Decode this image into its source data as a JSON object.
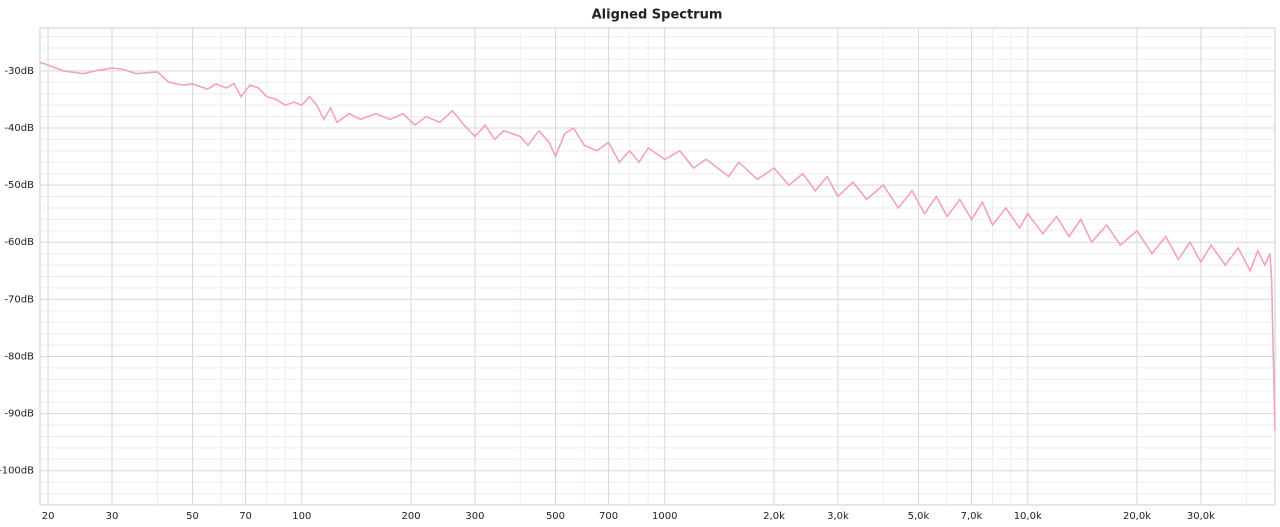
{
  "chart_data": {
    "type": "line",
    "title": "Aligned Spectrum",
    "log_x": true,
    "grid": true,
    "xlim": [
      19,
      48000
    ],
    "ylim": [
      -106,
      -22.5
    ],
    "xticks": [
      20,
      30,
      50,
      70,
      100,
      200,
      300,
      500,
      700,
      1000,
      {
        "value": 2000,
        "label": "2,0k"
      },
      {
        "value": 3000,
        "label": "3,0k"
      },
      {
        "value": 5000,
        "label": "5,0k"
      },
      {
        "value": 7000,
        "label": "7,0k"
      },
      {
        "value": 10000,
        "label": "10,0k"
      },
      {
        "value": 20000,
        "label": "20,0k"
      },
      {
        "value": 30000,
        "label": "30,0k"
      }
    ],
    "minor_xticks": [
      40,
      60,
      80,
      90,
      400,
      600,
      800,
      900,
      4000,
      6000,
      8000,
      9000,
      40000
    ],
    "yticks": [
      {
        "value": -30,
        "label": "-30dB"
      },
      {
        "value": -40,
        "label": "-40dB"
      },
      {
        "value": -50,
        "label": "-50dB"
      },
      {
        "value": -60,
        "label": "-60dB"
      },
      {
        "value": -70,
        "label": "-70dB"
      },
      {
        "value": -80,
        "label": "-80dB"
      },
      {
        "value": -90,
        "label": "-90dB"
      },
      {
        "value": -100,
        "label": "-100dB"
      }
    ],
    "minor_yticks": [
      -24,
      -26,
      -28,
      -32,
      -34,
      -36,
      -38,
      -42,
      -44,
      -46,
      -48,
      -52,
      -54,
      -56,
      -58,
      -62,
      -64,
      -66,
      -68,
      -72,
      -74,
      -76,
      -78,
      -82,
      -84,
      -86,
      -88,
      -92,
      -94,
      -96,
      -98,
      -102,
      -104
    ],
    "x": [
      19,
      20,
      22,
      25,
      27,
      30,
      32,
      35,
      40,
      43,
      47,
      50,
      55,
      58,
      62,
      65,
      68,
      72,
      76,
      80,
      85,
      90,
      95,
      100,
      105,
      110,
      115,
      120,
      125,
      135,
      145,
      160,
      175,
      190,
      205,
      220,
      240,
      260,
      280,
      300,
      320,
      340,
      360,
      400,
      420,
      450,
      480,
      500,
      530,
      560,
      600,
      650,
      700,
      750,
      800,
      850,
      900,
      1000,
      1100,
      1200,
      1300,
      1500,
      1600,
      1800,
      2000,
      2200,
      2400,
      2600,
      2800,
      3000,
      3300,
      3600,
      4000,
      4400,
      4800,
      5200,
      5600,
      6000,
      6500,
      7000,
      7500,
      8000,
      8700,
      9500,
      10000,
      11000,
      12000,
      13000,
      14000,
      15000,
      16500,
      18000,
      20000,
      22000,
      24000,
      26000,
      28000,
      30000,
      32000,
      35000,
      38000,
      41000,
      43000,
      45000,
      46500,
      47000,
      47500,
      48000
    ],
    "series": [
      {
        "color": "#f4a3b6",
        "values": [
          -28.5,
          -29,
          -30,
          -30.5,
          -30,
          -29.5,
          -29.7,
          -30.5,
          -30.2,
          -32,
          -32.5,
          -32.3,
          -33.2,
          -32.3,
          -33,
          -32.2,
          -34.5,
          -32.5,
          -33,
          -34.5,
          -35,
          -36,
          -35.5,
          -36,
          -34.5,
          -36,
          -38.5,
          -36.5,
          -39,
          -37.5,
          -38.5,
          -37.5,
          -38.5,
          -37.5,
          -39.5,
          -38,
          -39,
          -37,
          -39.5,
          -41.5,
          -39.5,
          -42,
          -40.5,
          -41.5,
          -43,
          -40.5,
          -42.5,
          -45,
          -41,
          -40,
          -43,
          -44,
          -42.5,
          -46,
          -44,
          -46,
          -43.5,
          -45.5,
          -44,
          -47,
          -45.5,
          -48.5,
          -46,
          -49,
          -47,
          -50,
          -48,
          -51,
          -48.5,
          -52,
          -49.5,
          -52.5,
          -50,
          -54,
          -51,
          -55,
          -52,
          -55.5,
          -52.5,
          -56,
          -53,
          -57,
          -54,
          -57.5,
          -55,
          -58.5,
          -55.5,
          -59,
          -56,
          -60,
          -57,
          -60.5,
          -58,
          -62,
          -59,
          -63,
          -60,
          -63.5,
          -60.5,
          -64,
          -61,
          -65,
          -61.5,
          -64,
          -62,
          -67,
          -80,
          -93
        ]
      }
    ]
  }
}
